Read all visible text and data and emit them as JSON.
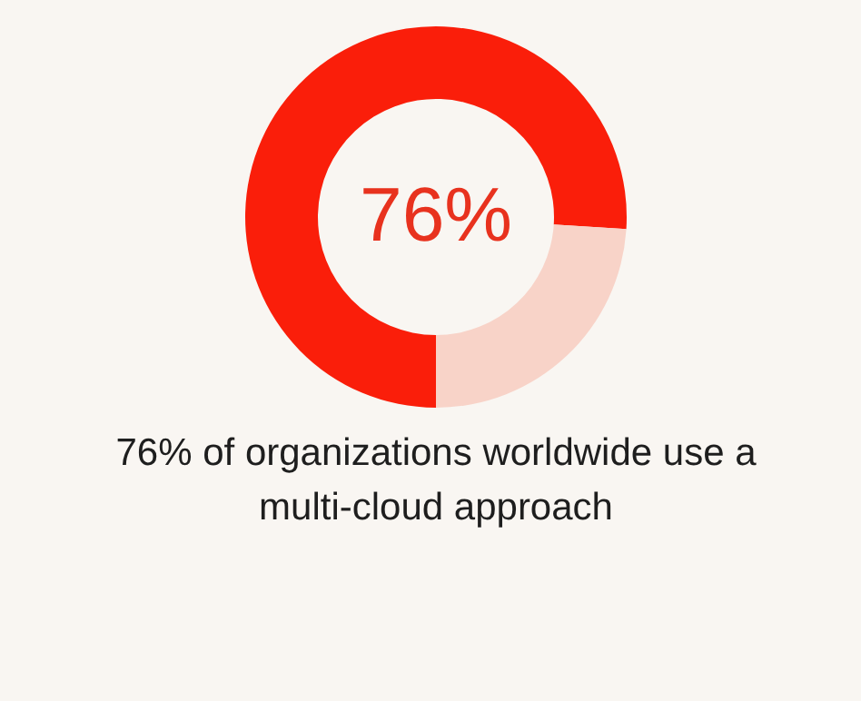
{
  "chart_data": {
    "type": "donut",
    "title": "76% of organizations worldwide use a multi-cloud approach",
    "categories": [
      null,
      null
    ],
    "values": [
      76,
      24
    ],
    "colors": [
      "#fa1e0a",
      "#f8d3c8"
    ],
    "annotations": [
      "76%"
    ]
  }
}
